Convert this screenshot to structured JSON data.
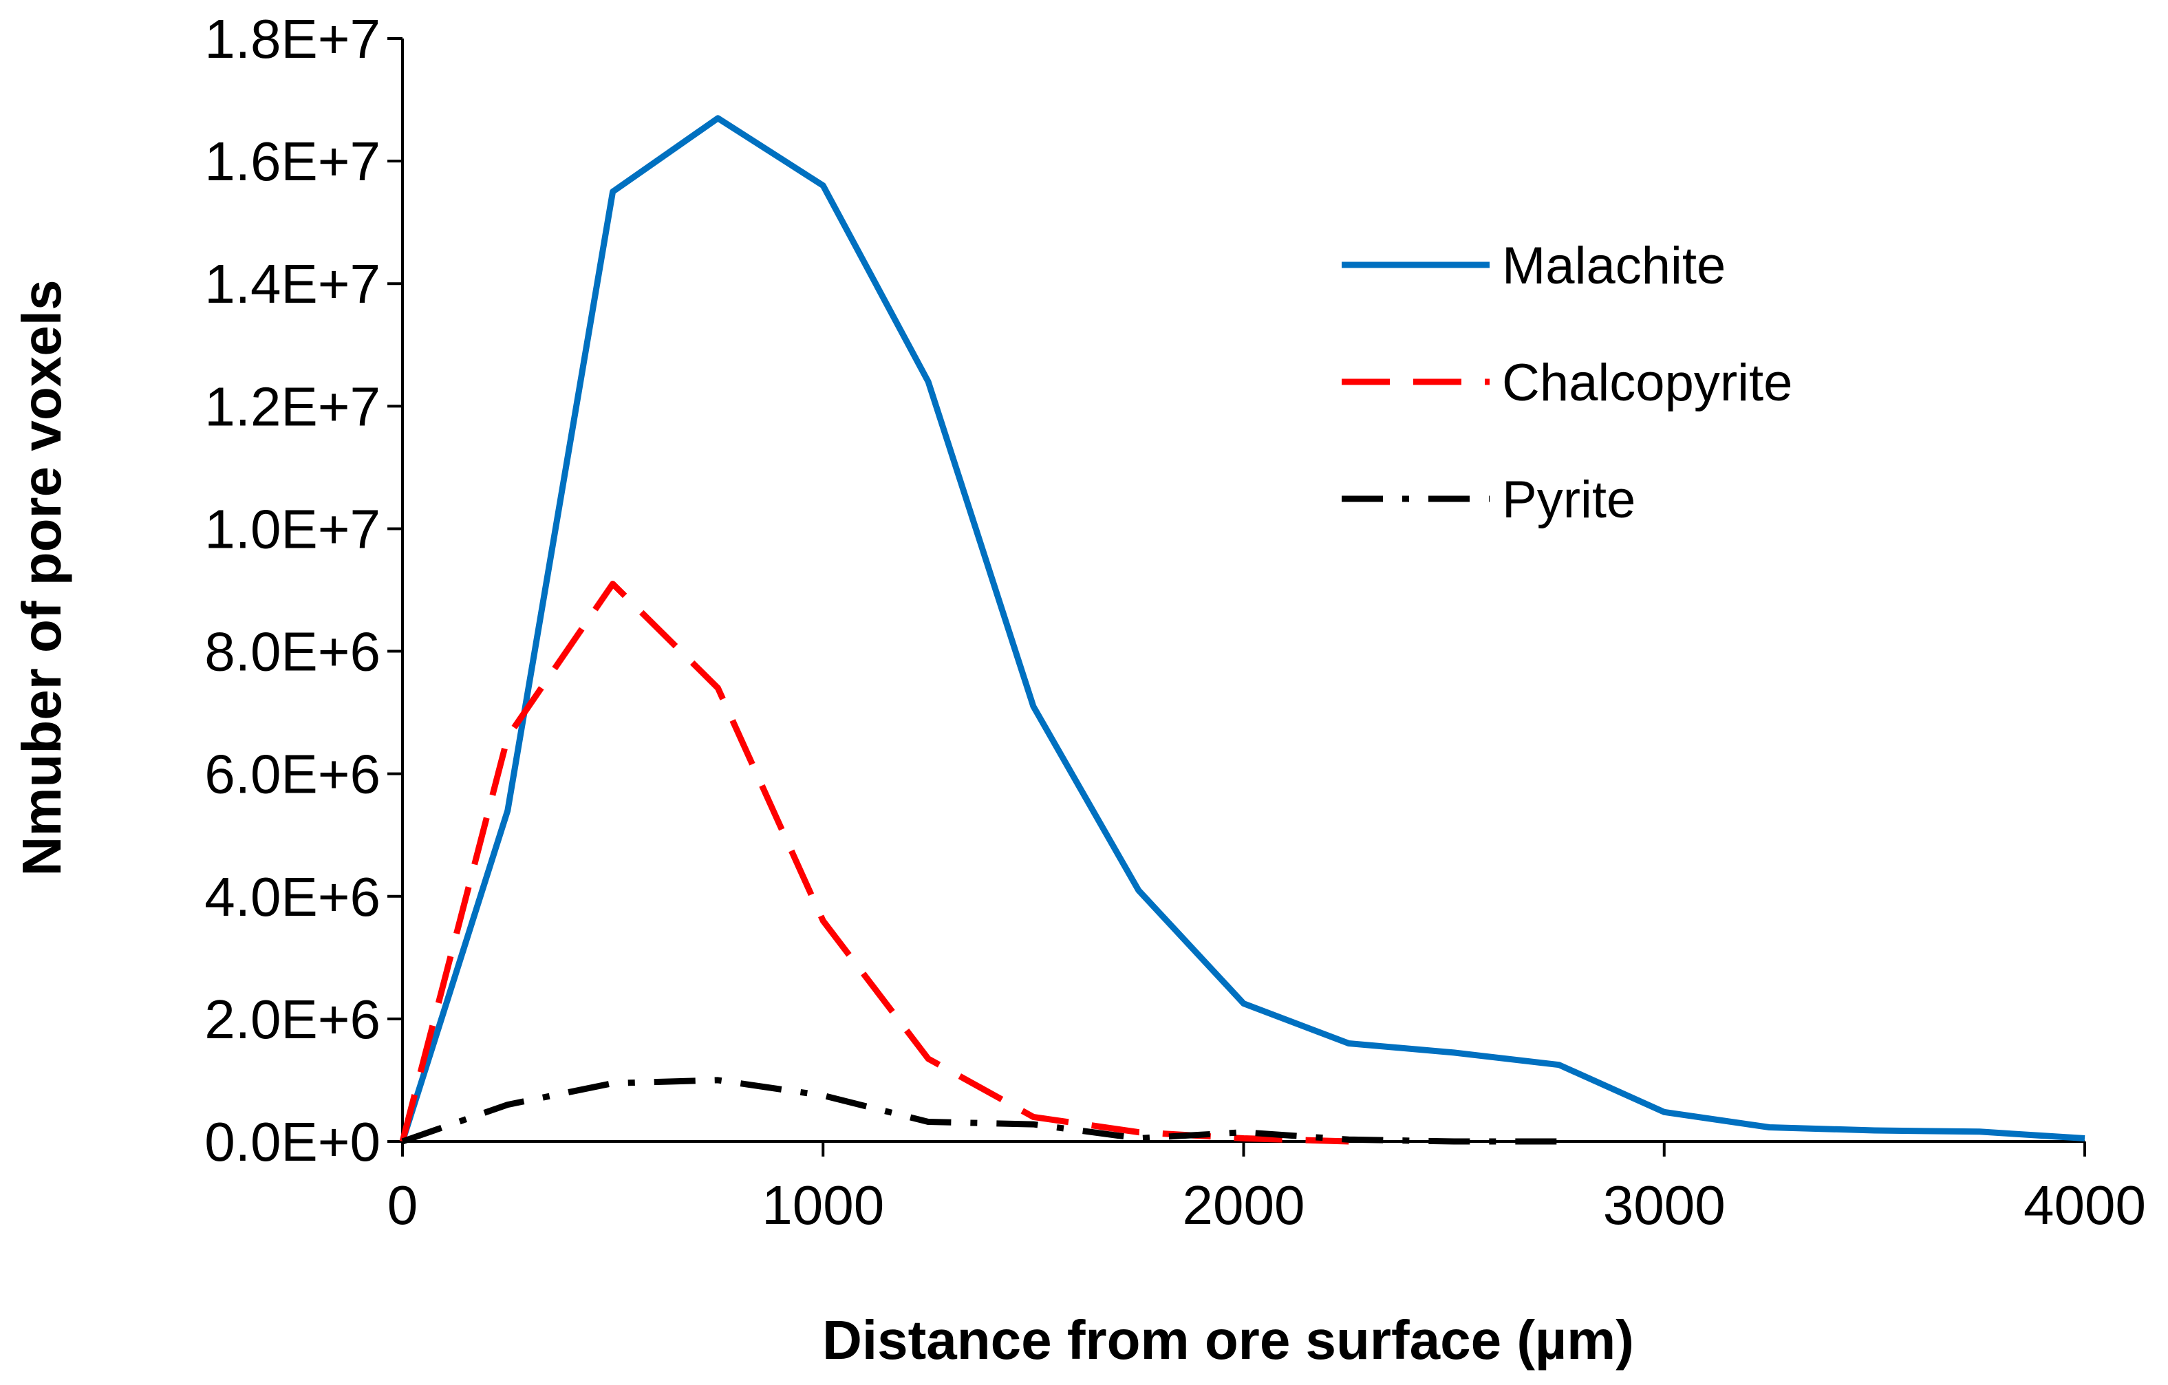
{
  "chart_data": {
    "type": "line",
    "title": "",
    "xlabel": "Distance from ore surface (µm)",
    "ylabel": "Nmuber of pore voxels",
    "xlim": [
      0,
      4000
    ],
    "ylim": [
      0,
      18000000
    ],
    "xticks": [
      0,
      1000,
      2000,
      3000,
      4000
    ],
    "xtick_labels": [
      "0",
      "1000",
      "2000",
      "3000",
      "4000"
    ],
    "yticks": [
      0,
      2000000,
      4000000,
      6000000,
      8000000,
      10000000,
      12000000,
      14000000,
      16000000,
      18000000
    ],
    "ytick_labels": [
      "0.0E+0",
      "2.0E+6",
      "4.0E+6",
      "6.0E+6",
      "8.0E+6",
      "1.0E+7",
      "1.2E+7",
      "1.4E+7",
      "1.6E+7",
      "1.8E+7"
    ],
    "grid": false,
    "legend_position": "top-right",
    "series": [
      {
        "name": "Malachite",
        "color": "#0070C0",
        "style": "solid",
        "x": [
          0,
          250,
          500,
          750,
          1000,
          1250,
          1500,
          1750,
          2000,
          2250,
          2500,
          2750,
          3000,
          3250,
          3500,
          3750,
          4000
        ],
        "values": [
          0,
          5400000,
          15500000,
          16700000,
          15600000,
          12400000,
          7100000,
          4100000,
          2250000,
          1600000,
          1450000,
          1250000,
          480000,
          230000,
          180000,
          160000,
          50000
        ]
      },
      {
        "name": "Chalcopyrite",
        "color": "#FF0000",
        "style": "dashed",
        "x": [
          0,
          250,
          500,
          750,
          1000,
          1250,
          1500,
          1750,
          2000,
          2250
        ],
        "values": [
          0,
          6600000,
          9100000,
          7400000,
          3600000,
          1350000,
          400000,
          150000,
          50000,
          0
        ]
      },
      {
        "name": "Pyrite",
        "color": "#000000",
        "style": "dash-dot",
        "x": [
          0,
          250,
          500,
          750,
          1000,
          1250,
          1500,
          1750,
          2000,
          2250,
          2500,
          2750
        ],
        "values": [
          0,
          600000,
          950000,
          1000000,
          750000,
          320000,
          280000,
          50000,
          150000,
          30000,
          0,
          0
        ]
      }
    ]
  }
}
